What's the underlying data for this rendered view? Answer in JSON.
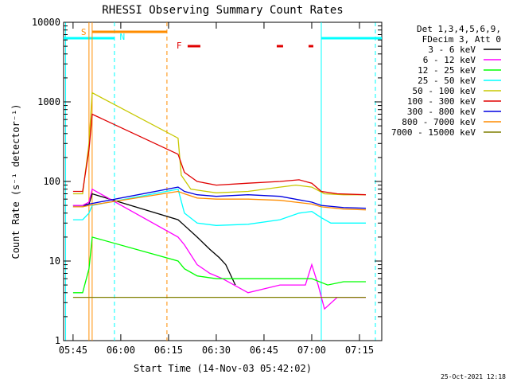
{
  "chart_data": {
    "type": "line",
    "title": "RHESSI Observing Summary Count Rates",
    "xlabel": "Start Time (14-Nov-03 05:42:02)",
    "ylabel": "Count Rate (s⁻¹ detector⁻¹)",
    "y_scale": "log",
    "ylim": [
      1,
      10000
    ],
    "xlim": [
      "05:42:02",
      "07:22:00"
    ],
    "x_ticks": [
      "05:45",
      "06:00",
      "06:15",
      "06:30",
      "06:45",
      "07:00",
      "07:15"
    ],
    "y_ticks": [
      "1",
      "10",
      "100",
      "1000",
      "10000"
    ],
    "legend_header": [
      "Det 1,3,4,5,6,9,",
      "FDecim 3, Att 0"
    ],
    "legend_position": "right",
    "series": [
      {
        "name": "3 - 6 keV",
        "color": "#000000",
        "x": [
          "05:45",
          "05:48",
          "05:50",
          "05:51",
          "06:18",
          "06:20",
          "06:24",
          "06:28",
          "06:31",
          "06:33",
          "06:36"
        ],
        "y": [
          50,
          50,
          52,
          70,
          33,
          28,
          20,
          14,
          11,
          9,
          5
        ]
      },
      {
        "name": "6 - 12 keV",
        "color": "#ff00ff",
        "x": [
          "05:45",
          "05:48",
          "05:50",
          "05:51",
          "06:18",
          "06:20",
          "06:24",
          "06:28",
          "06:32",
          "06:40",
          "06:50",
          "06:58",
          "07:00",
          "07:02",
          "07:04",
          "07:08",
          "07:12",
          "07:17"
        ],
        "y": [
          50,
          50,
          55,
          80,
          20,
          16,
          9,
          7,
          6,
          4,
          5,
          5,
          9,
          5,
          2.5,
          3.5,
          3.5,
          3.5
        ]
      },
      {
        "name": "12 - 25 keV",
        "color": "#00ff00",
        "x": [
          "05:45",
          "05:48",
          "05:50",
          "05:51",
          "06:18",
          "06:20",
          "06:24",
          "06:30",
          "06:40",
          "06:50",
          "07:00",
          "07:05",
          "07:10",
          "07:17"
        ],
        "y": [
          4,
          4,
          8,
          20,
          10,
          8,
          6.5,
          6,
          6,
          6,
          6,
          5,
          5.5,
          5.5
        ]
      },
      {
        "name": "25 - 50 keV",
        "color": "#00ffff",
        "x": [
          "05:45",
          "05:48",
          "05:50",
          "05:51",
          "06:18",
          "06:20",
          "06:24",
          "06:30",
          "06:40",
          "06:50",
          "06:56",
          "07:00",
          "07:03",
          "07:06",
          "07:10",
          "07:17"
        ],
        "y": [
          33,
          33,
          40,
          50,
          80,
          40,
          30,
          28,
          29,
          33,
          40,
          42,
          35,
          30,
          30,
          30
        ]
      },
      {
        "name": "50 - 100 keV",
        "color": "#c8c800",
        "x": [
          "05:45",
          "05:48",
          "05:50",
          "05:51",
          "06:18",
          "06:19",
          "06:22",
          "06:30",
          "06:40",
          "06:50",
          "06:55",
          "07:00",
          "07:04",
          "07:10",
          "07:17"
        ],
        "y": [
          70,
          70,
          300,
          1300,
          350,
          120,
          80,
          72,
          75,
          85,
          90,
          85,
          70,
          68,
          68
        ]
      },
      {
        "name": "100 - 300 keV",
        "color": "#e00000",
        "x": [
          "05:45",
          "05:48",
          "05:50",
          "05:51",
          "06:18",
          "06:20",
          "06:24",
          "06:30",
          "06:40",
          "06:50",
          "06:56",
          "07:00",
          "07:03",
          "07:08",
          "07:17"
        ],
        "y": [
          75,
          75,
          250,
          700,
          220,
          130,
          100,
          90,
          95,
          100,
          105,
          95,
          75,
          70,
          68
        ]
      },
      {
        "name": "300 - 800 keV",
        "color": "#0000e0",
        "x": [
          "05:45",
          "05:48",
          "05:50",
          "06:18",
          "06:20",
          "06:24",
          "06:30",
          "06:40",
          "06:50",
          "07:00",
          "07:03",
          "07:10",
          "07:17"
        ],
        "y": [
          48,
          48,
          52,
          85,
          75,
          68,
          65,
          68,
          65,
          55,
          50,
          47,
          46
        ]
      },
      {
        "name": "800 - 7000 keV",
        "color": "#ff8c00",
        "x": [
          "05:45",
          "05:48",
          "05:50",
          "06:18",
          "06:20",
          "06:24",
          "06:30",
          "06:40",
          "06:50",
          "07:00",
          "07:03",
          "07:10",
          "07:17"
        ],
        "y": [
          48,
          48,
          50,
          75,
          70,
          62,
          60,
          60,
          58,
          52,
          48,
          45,
          44
        ]
      },
      {
        "name": "7000 - 15000 keV",
        "color": "#7f7f00",
        "x": [
          "05:45",
          "05:48",
          "05:50",
          "06:18",
          "06:25",
          "06:35",
          "06:45",
          "06:55",
          "07:05",
          "07:17"
        ],
        "y": [
          3.5,
          3.5,
          3.5,
          3.5,
          3.5,
          3.5,
          3.5,
          3.5,
          3.5,
          3.5
        ]
      }
    ],
    "flags": [
      {
        "label": "S",
        "color": "#ff8c00"
      },
      {
        "label": "N",
        "color": "#00ffff"
      },
      {
        "label": "F",
        "color": "#e00000"
      }
    ],
    "footer_date": "25-Oct-2021 12:18"
  }
}
